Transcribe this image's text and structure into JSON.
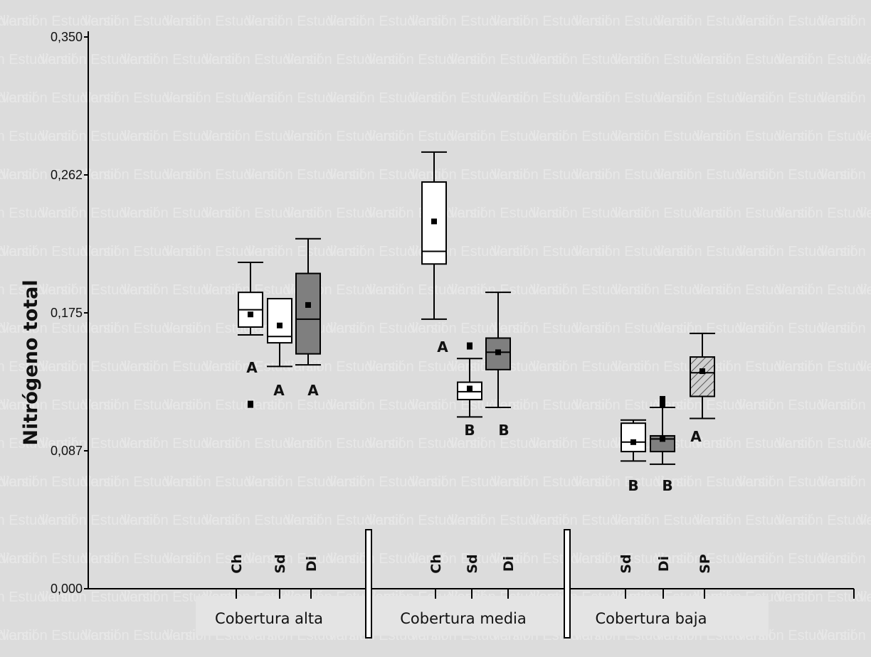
{
  "watermark": "Versión Estudiantil",
  "chart_data": {
    "type": "box",
    "ylabel": "Nitrógeno total",
    "yticks": [
      "0,000",
      "0,087",
      "0,175",
      "0,262",
      "0,350"
    ],
    "ylim": [
      0,
      0.35
    ],
    "groups": [
      {
        "label": "Cobertura alta",
        "boxes": [
          {
            "category": "Ch",
            "whisker_low": 0.161,
            "q1": 0.166,
            "median": 0.177,
            "q3": 0.188,
            "whisker_high": 0.207,
            "mean": 0.174,
            "outliers": [
              0.117
            ],
            "letter": "A",
            "fill": "#ffffff",
            "pattern": "none"
          },
          {
            "category": "Sd",
            "whisker_low": 0.141,
            "q1": 0.156,
            "median": 0.16,
            "q3": 0.184,
            "whisker_high": 0.184,
            "mean": 0.167,
            "outliers": [],
            "letter": "A",
            "fill": "#ffffff",
            "pattern": "none"
          },
          {
            "category": "Di",
            "whisker_low": 0.142,
            "q1": 0.149,
            "median": 0.171,
            "q3": 0.2,
            "whisker_high": 0.222,
            "mean": 0.18,
            "outliers": [],
            "letter": "A",
            "fill": "#7f7f7f",
            "pattern": "none"
          }
        ]
      },
      {
        "label": "Cobertura media",
        "boxes": [
          {
            "category": "Ch",
            "whisker_low": 0.171,
            "q1": 0.206,
            "median": 0.214,
            "q3": 0.258,
            "whisker_high": 0.277,
            "mean": 0.233,
            "outliers": [],
            "letter": "A",
            "fill": "#ffffff",
            "pattern": "none"
          },
          {
            "category": "Sd",
            "whisker_low": 0.109,
            "q1": 0.12,
            "median": 0.125,
            "q3": 0.131,
            "whisker_high": 0.146,
            "mean": 0.127,
            "outliers": [
              0.154
            ],
            "letter": "B",
            "fill": "#ffffff",
            "pattern": "none"
          },
          {
            "category": "Di",
            "whisker_low": 0.115,
            "q1": 0.139,
            "median": 0.15,
            "q3": 0.159,
            "whisker_high": 0.188,
            "mean": 0.15,
            "outliers": [],
            "letter": "B",
            "fill": "#7f7f7f",
            "pattern": "none"
          }
        ]
      },
      {
        "label": "Cobertura baja",
        "boxes": [
          {
            "category": "Sd",
            "whisker_low": 0.081,
            "q1": 0.087,
            "median": 0.093,
            "q3": 0.105,
            "whisker_high": 0.107,
            "mean": 0.093,
            "outliers": [],
            "letter": "B",
            "fill": "#ffffff",
            "pattern": "none"
          },
          {
            "category": "Di",
            "whisker_low": 0.079,
            "q1": 0.087,
            "median": 0.095,
            "q3": 0.097,
            "whisker_high": 0.115,
            "mean": 0.095,
            "outliers": [
              0.117,
              0.12
            ],
            "letter": "B",
            "fill": "#7f7f7f",
            "pattern": "none"
          },
          {
            "category": "SP",
            "whisker_low": 0.108,
            "q1": 0.122,
            "median": 0.137,
            "q3": 0.147,
            "whisker_high": 0.162,
            "mean": 0.138,
            "outliers": [],
            "letter": "A",
            "fill": "#d0d0d0",
            "pattern": "hatch"
          }
        ]
      }
    ]
  }
}
